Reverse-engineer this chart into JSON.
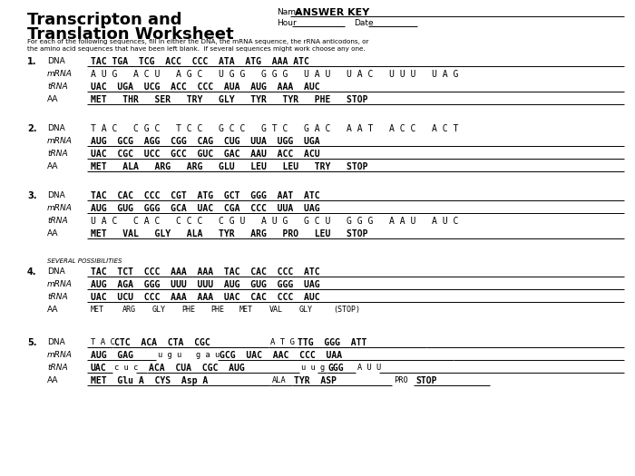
{
  "title_line1": "Transcripton and",
  "title_line2": "Translation Worksheet",
  "name_label": "Name",
  "answer_key": "ANSWER KEY",
  "hour_label": "Hour",
  "date_label": "Date",
  "instructions": "For each of the following sequences, fill in either the DNA, the mRNA sequence, the rRNA anticodons, or\nthe amino acid sequences that have been left blank.  If several sequences might work choose any one.",
  "q1": {
    "dna": {
      "bold": true,
      "text": "TAC TGA  TCG  ACC  CCC  ATA  ATG  AAA ATC"
    },
    "mrna": {
      "bold": false,
      "text": "A U G   A C U   A G C   U G G   G G G   U A U   U A C   U U U   U A G"
    },
    "trna": {
      "bold": true,
      "text": "UAC  UGA  UCG  ACC  CCC  AUA  AUG  AAA  AUC"
    },
    "aa": {
      "bold": true,
      "text": "MET   THR   SER   TRY   GLY   TYR   TYR   PHE   STOP"
    }
  },
  "q2": {
    "dna": {
      "bold": false,
      "text": "T A C   C G C   T C C   G C C   G T C   G A C   A A T   A C C   A C T"
    },
    "mrna": {
      "bold": true,
      "text": "AUG  GCG  AGG  CGG  CAG  CUG  UUA  UGG  UGA"
    },
    "trna": {
      "bold": true,
      "text": "UAC  CGC  UCC  GCC  GUC  GAC  AAU  ACC  ACU"
    },
    "aa": {
      "bold": true,
      "text": "MET   ALA   ARG   ARG   GLU   LEU   LEU   TRY   STOP"
    }
  },
  "q3": {
    "dna": {
      "bold": true,
      "text": "TAC  CAC  CCC  CGT  ATG  GCT  GGG  AAT  ATC"
    },
    "mrna": {
      "bold": true,
      "text": "AUG  GUG  GGG  GCA  UAC  CGA  CCC  UUA  UAG"
    },
    "trna": {
      "bold": false,
      "text": "U A C   C A C   C C C   C G U   A U G   G C U   G G G   A A U   A U C"
    },
    "aa": {
      "bold": true,
      "text": "MET   VAL   GLY   ALA   TYR   ARG   PRO   LEU   STOP"
    }
  },
  "q4": {
    "dna": {
      "bold": true,
      "text": "TAC  TCT  CCC  AAA  AAA  TAC  CAC  CCC  ATC"
    },
    "mrna": {
      "bold": true,
      "text": "AUG  AGA  GGG  UUU  UUU  AUG  GUG  GGG  UAG"
    },
    "trna": {
      "bold": true,
      "text": "UAC  UCU  CCC  AAA  AAA  UAC  CAC  CCC  AUC"
    },
    "aa": {
      "bold": false,
      "text": "MET      ARG      GLY      PHE      PHE      MET      VAL      GLY      (STOP)"
    }
  },
  "several_possibilities": "SEVERAL POSSIBILITIES"
}
